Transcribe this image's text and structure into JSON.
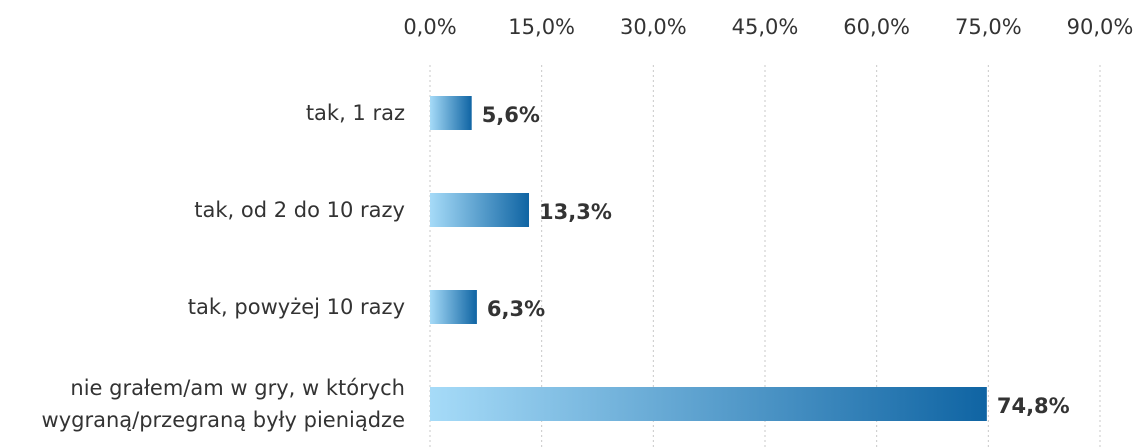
{
  "chart_data": {
    "type": "barh",
    "categories": [
      "tak, 1 raz",
      "tak, od 2 do 10 razy",
      "tak, powyżej 10 razy",
      "nie grałem/am w gry, w których wygraną/przegraną były pieniądze"
    ],
    "values": [
      5.6,
      13.3,
      6.3,
      74.8
    ],
    "value_labels": [
      "5,6%",
      "13,3%",
      "6,3%",
      "74,8%"
    ],
    "gradient": [
      "#a6dbf8",
      "#0f64a3"
    ],
    "xlim": [
      0,
      90
    ],
    "xticks": [
      {
        "value": 0,
        "label": "0,0%"
      },
      {
        "value": 15,
        "label": "15,0%"
      },
      {
        "value": 30,
        "label": "30,0%"
      },
      {
        "value": 45,
        "label": "45,0%"
      },
      {
        "value": 60,
        "label": "60,0%"
      },
      {
        "value": 75,
        "label": "75,0%"
      },
      {
        "value": 90,
        "label": "90,0%"
      }
    ],
    "grid": true
  }
}
